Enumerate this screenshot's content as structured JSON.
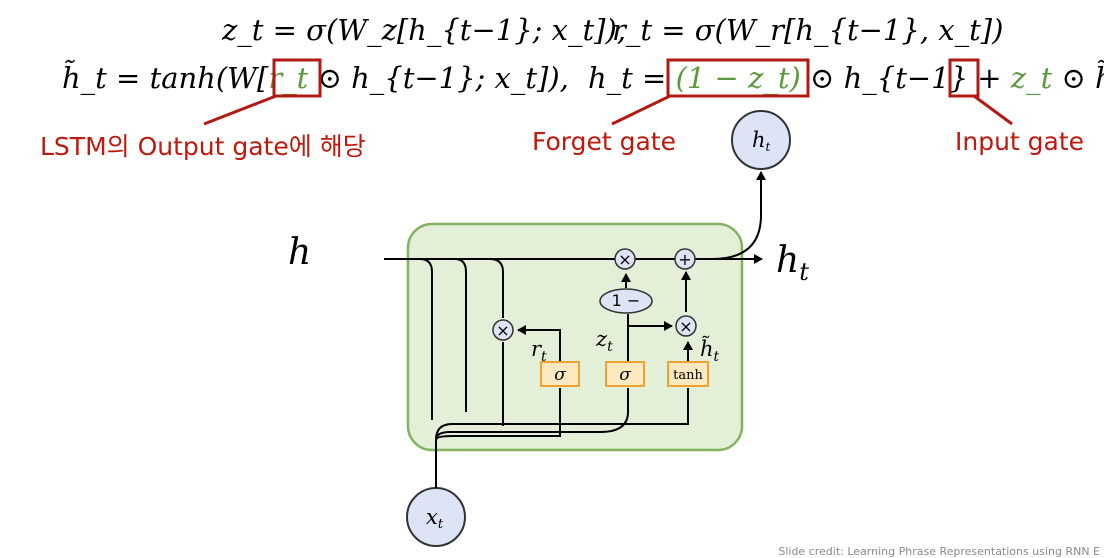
{
  "equations": {
    "zt": "z_t = σ(W_z[h_{t−1}; x_t]),",
    "rt": "r_t = σ(W_r[h_{t−1}, x_t])",
    "htilde_pre": "h̃_t = tanh(W[",
    "htilde_r": "r_t",
    "htilde_post": "⊙ h_{t−1}; x_t]),",
    "ht_pre": "h_t =",
    "ht_forget": "(1 − z_t)",
    "ht_mid": "⊙ h_{t−1} +",
    "ht_input": "z_t",
    "ht_post": "⊙ h̃_t"
  },
  "annotations": {
    "output_gate": "LSTM의 Output gate에 해당",
    "forget_gate": "Forget gate",
    "input_gate": "Input gate"
  },
  "diagram": {
    "h_prev_label": "h",
    "h_out_label": "h",
    "h_out_sub": "t",
    "h_top_label": "h",
    "h_top_sub": "t",
    "x_label": "x",
    "x_sub": "t",
    "r_label": "r",
    "r_sub": "t",
    "z_label": "z",
    "z_sub": "t",
    "htilde_label": "h̃",
    "htilde_sub": "t",
    "sigma1": "σ",
    "sigma2": "σ",
    "tanh": "tanh",
    "one_minus": "1 −",
    "mul": "×",
    "add": "+"
  },
  "colors": {
    "cell_fill": "#e3efd7",
    "cell_border": "#82b35f",
    "gate_fill": "#fde9c0",
    "gate_border": "#eea233",
    "node_fill": "#dde4f5",
    "node_border": "#333333",
    "annot_red": "#c0180c",
    "green_text": "#5b9a3c"
  },
  "credit": "Slide credit: Learning Phrase Representations using RNN E"
}
